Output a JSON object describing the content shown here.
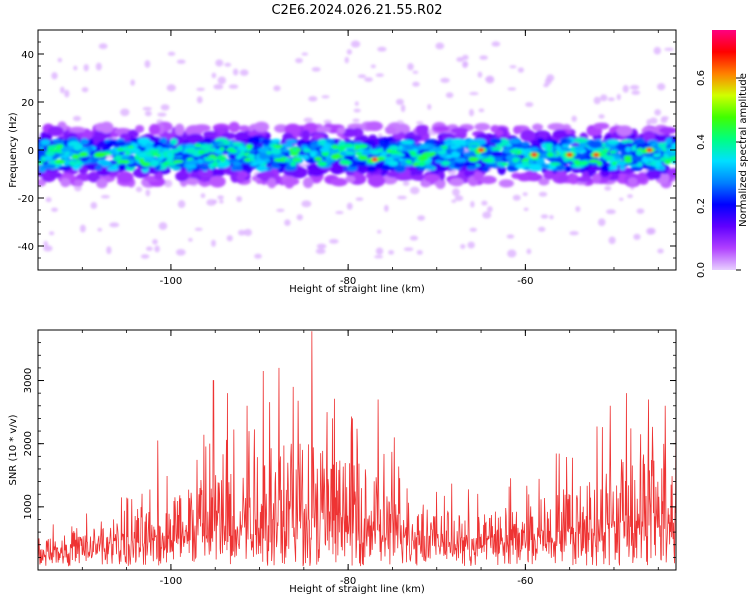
{
  "title": "C2E6.2024.026.21.55.R02",
  "chart_data": [
    {
      "type": "heatmap",
      "xlabel": "Height of straight line (km)",
      "ylabel": "Frequency (Hz)",
      "xlim": [
        -115,
        -43
      ],
      "ylim": [
        -50,
        50
      ],
      "xticks": [
        -100,
        -80,
        -60
      ],
      "yticks": [
        -40,
        -20,
        0,
        20,
        40
      ],
      "band_center_hz": -2,
      "band_halfwidth_hz": 6,
      "colorbar": {
        "label": "Normalized spectral amplitude",
        "range": [
          0,
          0.75
        ],
        "ticks": [
          0.0,
          0.2,
          0.4,
          0.6
        ],
        "colors": [
          "#e8d0ff",
          "#b040ff",
          "#6000ff",
          "#0000ff",
          "#0080ff",
          "#00e0ff",
          "#00ff80",
          "#40ff00",
          "#d0ff00",
          "#ff8000",
          "#ff0000",
          "#ff0080"
        ]
      },
      "hotspots": [
        {
          "x": -77,
          "y": -4,
          "v": 0.72
        },
        {
          "x": -65,
          "y": 0,
          "v": 0.7
        },
        {
          "x": -59,
          "y": -2,
          "v": 0.7
        },
        {
          "x": -55,
          "y": -2,
          "v": 0.68
        },
        {
          "x": -52,
          "y": -2,
          "v": 0.66
        },
        {
          "x": -46,
          "y": 0,
          "v": 0.7
        },
        {
          "x": -108,
          "y": -2,
          "v": 0.45
        },
        {
          "x": -86,
          "y": 0,
          "v": 0.4
        },
        {
          "x": -71,
          "y": -2,
          "v": 0.42
        }
      ]
    },
    {
      "type": "line",
      "xlabel": "Height of straight line (km)",
      "ylabel": "SNR (10 * v/v)",
      "xlim": [
        -115,
        -43
      ],
      "ylim": [
        0,
        3800
      ],
      "xticks": [
        -100,
        -80,
        -60
      ],
      "yticks": [
        1000,
        2000,
        3000
      ],
      "color": "#ee3333",
      "envelope": [
        {
          "x": -115,
          "base": 300,
          "peak": 750
        },
        {
          "x": -108,
          "base": 400,
          "peak": 1000
        },
        {
          "x": -101,
          "base": 550,
          "peak": 1500
        },
        {
          "x": -96,
          "base": 800,
          "peak": 2400
        },
        {
          "x": -90,
          "base": 900,
          "peak": 3000
        },
        {
          "x": -84,
          "base": 950,
          "peak": 3200
        },
        {
          "x": -78,
          "base": 800,
          "peak": 2300
        },
        {
          "x": -72,
          "base": 600,
          "peak": 1500
        },
        {
          "x": -66,
          "base": 450,
          "peak": 1300
        },
        {
          "x": -60,
          "base": 600,
          "peak": 1600
        },
        {
          "x": -54,
          "base": 750,
          "peak": 2100
        },
        {
          "x": -48,
          "base": 850,
          "peak": 2900
        },
        {
          "x": -43,
          "base": 900,
          "peak": 2800
        }
      ],
      "spikes": [
        {
          "x": -105.6,
          "y": 1150
        },
        {
          "x": -101.5,
          "y": 2050
        },
        {
          "x": -95.2,
          "y": 3000
        },
        {
          "x": -93.6,
          "y": 2800
        },
        {
          "x": -91.4,
          "y": 2600
        },
        {
          "x": -89.6,
          "y": 3150
        },
        {
          "x": -87.8,
          "y": 3200
        },
        {
          "x": -86.2,
          "y": 2900
        },
        {
          "x": -84.1,
          "y": 3780
        },
        {
          "x": -82.4,
          "y": 2500
        },
        {
          "x": -79.5,
          "y": 2400
        },
        {
          "x": -76.6,
          "y": 2700
        },
        {
          "x": -74.8,
          "y": 2100
        },
        {
          "x": -50.4,
          "y": 2600
        },
        {
          "x": -48.6,
          "y": 2800
        },
        {
          "x": -46.1,
          "y": 2700
        },
        {
          "x": -44.2,
          "y": 2600
        }
      ]
    }
  ]
}
